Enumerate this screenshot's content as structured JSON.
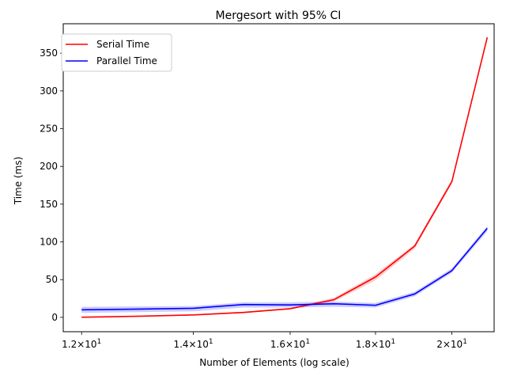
{
  "chart_data": {
    "type": "line",
    "title": "Mergesort with 95% CI",
    "xlabel": "Number of Elements (log scale)",
    "ylabel": "Time (ms)",
    "x_scale": "log",
    "xlim": [
      11.7,
      21.2
    ],
    "ylim": [
      -19,
      389
    ],
    "grid": false,
    "legend_position": "top-left",
    "x": [
      12,
      13,
      14,
      15,
      16,
      17,
      18,
      19,
      20,
      21
    ],
    "x_ticks": [
      {
        "value": 12,
        "base": "1.2",
        "exp": "1"
      },
      {
        "value": 14,
        "base": "1.4",
        "exp": "1"
      },
      {
        "value": 16,
        "base": "1.6",
        "exp": "1"
      },
      {
        "value": 18,
        "base": "1.8",
        "exp": "1"
      },
      {
        "value": 20,
        "base": "2",
        "exp": "1"
      }
    ],
    "y_ticks": [
      0,
      50,
      100,
      150,
      200,
      250,
      300,
      350
    ],
    "series": [
      {
        "name": "Serial Time",
        "color": "#ff0000",
        "values": [
          0.2,
          1.5,
          3.2,
          6.5,
          11.5,
          23.5,
          53.5,
          94.5,
          180,
          371
        ],
        "ci_lower": [
          0,
          1,
          2.5,
          5.5,
          10.5,
          21,
          49,
          91,
          177,
          369
        ],
        "ci_upper": [
          0.6,
          2,
          4,
          7.5,
          12.5,
          26,
          57,
          97,
          183,
          373
        ]
      },
      {
        "name": "Parallel Time",
        "color": "#0000ff",
        "values": [
          10,
          11,
          12,
          17,
          16.5,
          18,
          16,
          31,
          62,
          118
        ],
        "ci_lower": [
          6,
          7,
          8,
          13,
          13,
          14,
          13,
          28,
          59,
          114
        ],
        "ci_upper": [
          14,
          14.5,
          15,
          20,
          20,
          21,
          19,
          34,
          65,
          121
        ]
      }
    ]
  }
}
